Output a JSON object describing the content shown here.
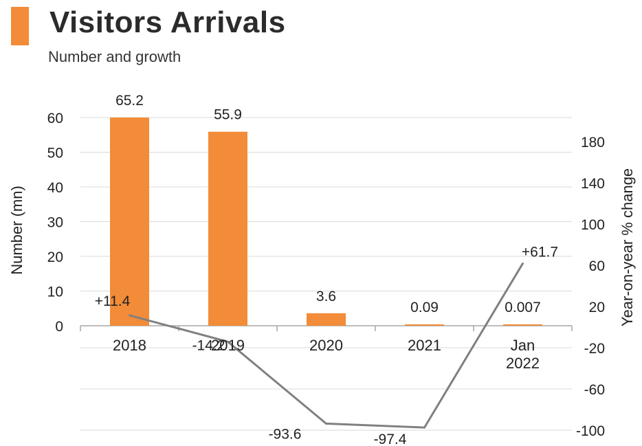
{
  "header": {
    "title": "Visitors Arrivals",
    "subtitle": "Number and growth",
    "accent_color": "#f28c38"
  },
  "chart_data": {
    "type": "bar+line",
    "categories": [
      "2018",
      "2019",
      "2020",
      "2021",
      "Jan\n2022"
    ],
    "bar_series": {
      "values": [
        65.2,
        55.9,
        3.6,
        0.09,
        0.007
      ],
      "value_labels": [
        "65.2",
        "55.9",
        "3.6",
        "0.09",
        "0.007"
      ],
      "color": "#f28c38",
      "axis": "left"
    },
    "line_series": {
      "values": [
        11.4,
        -14.2,
        -93.6,
        -97.4,
        61.7
      ],
      "value_labels": [
        "+11.4",
        "-14.2",
        "-93.6",
        "-97.4",
        "+61.7"
      ],
      "color": "#808080",
      "axis": "right"
    },
    "left_axis": {
      "label": "Number (mn)",
      "ticks": [
        0,
        10,
        20,
        30,
        40,
        50,
        60
      ],
      "ylim": [
        0,
        60
      ]
    },
    "right_axis": {
      "label": "Year-on-year % change",
      "ticks": [
        -100,
        -60,
        -20,
        20,
        60,
        100,
        140,
        180
      ],
      "ylim": [
        -100,
        180
      ]
    },
    "grid": true,
    "legend": "none"
  }
}
